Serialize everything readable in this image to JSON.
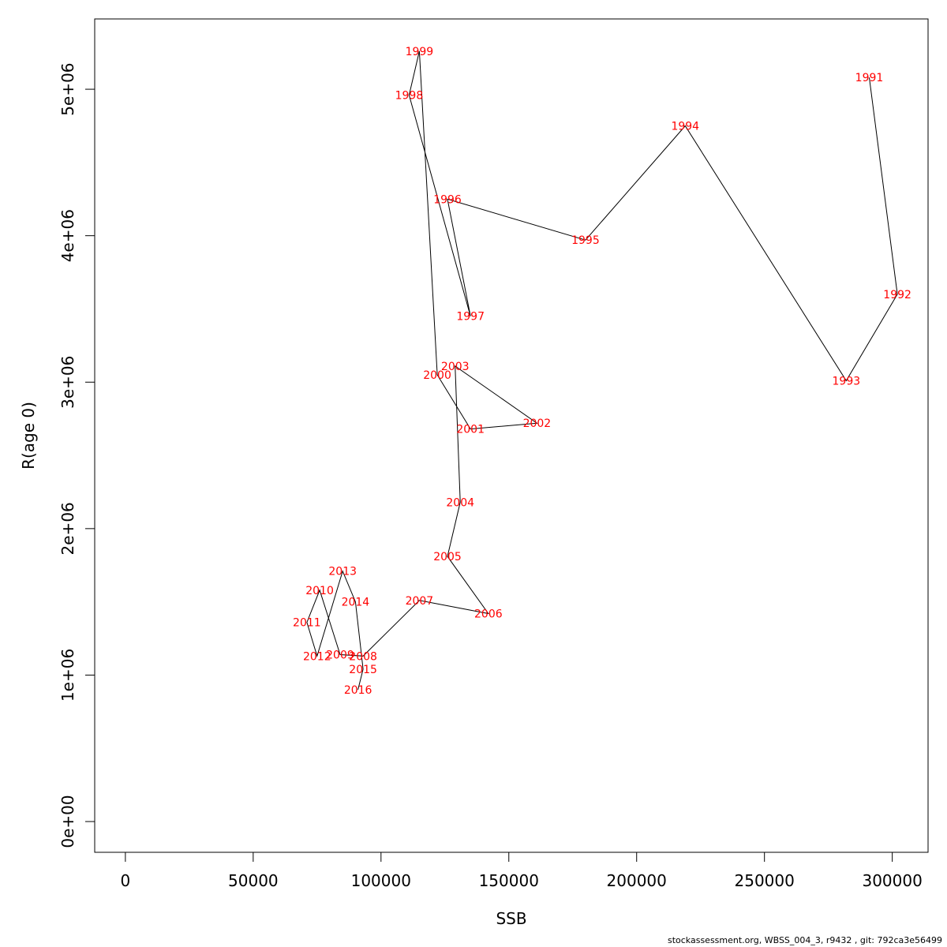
{
  "chart_data": {
    "type": "line",
    "xlabel": "SSB",
    "ylabel": "R(age 0)",
    "xlim": [
      -12000,
      314000
    ],
    "ylim": [
      -210000,
      5480000
    ],
    "x_ticks": [
      0,
      50000,
      100000,
      150000,
      200000,
      250000,
      300000
    ],
    "x_tick_labels": [
      "0",
      "50000",
      "100000",
      "150000",
      "200000",
      "250000",
      "300000"
    ],
    "y_ticks": [
      0,
      1000000,
      2000000,
      3000000,
      4000000,
      5000000
    ],
    "y_tick_labels": [
      "0e+00",
      "1e+06",
      "2e+06",
      "3e+06",
      "4e+06",
      "5e+06"
    ],
    "grid": false,
    "label_color": "#ff0000",
    "line_color": "#000000",
    "points": [
      {
        "label": "1991",
        "x": 291000,
        "y": 5080000
      },
      {
        "label": "1992",
        "x": 302000,
        "y": 3600000
      },
      {
        "label": "1993",
        "x": 282000,
        "y": 3010000
      },
      {
        "label": "1994",
        "x": 219000,
        "y": 4750000
      },
      {
        "label": "1995",
        "x": 180000,
        "y": 3970000
      },
      {
        "label": "1996",
        "x": 126000,
        "y": 4250000
      },
      {
        "label": "1997",
        "x": 135000,
        "y": 3450000
      },
      {
        "label": "1998",
        "x": 111000,
        "y": 4960000
      },
      {
        "label": "1999",
        "x": 115000,
        "y": 5260000
      },
      {
        "label": "2000",
        "x": 122000,
        "y": 3050000
      },
      {
        "label": "2001",
        "x": 135000,
        "y": 2680000
      },
      {
        "label": "2002",
        "x": 161000,
        "y": 2720000
      },
      {
        "label": "2003",
        "x": 129000,
        "y": 3110000
      },
      {
        "label": "2004",
        "x": 131000,
        "y": 2180000
      },
      {
        "label": "2005",
        "x": 126000,
        "y": 1810000
      },
      {
        "label": "2006",
        "x": 142000,
        "y": 1420000
      },
      {
        "label": "2007",
        "x": 115000,
        "y": 1510000
      },
      {
        "label": "2008",
        "x": 93000,
        "y": 1130000
      },
      {
        "label": "2009",
        "x": 84000,
        "y": 1140000
      },
      {
        "label": "2010",
        "x": 76000,
        "y": 1580000
      },
      {
        "label": "2011",
        "x": 71000,
        "y": 1360000
      },
      {
        "label": "2012",
        "x": 75000,
        "y": 1130000
      },
      {
        "label": "2013",
        "x": 85000,
        "y": 1710000
      },
      {
        "label": "2014",
        "x": 90000,
        "y": 1500000
      },
      {
        "label": "2015",
        "x": 93000,
        "y": 1040000
      },
      {
        "label": "2016",
        "x": 91000,
        "y": 900000
      }
    ]
  },
  "footer": "stockassessment.org, WBSS_004_3, r9432 , git: 792ca3e56499"
}
